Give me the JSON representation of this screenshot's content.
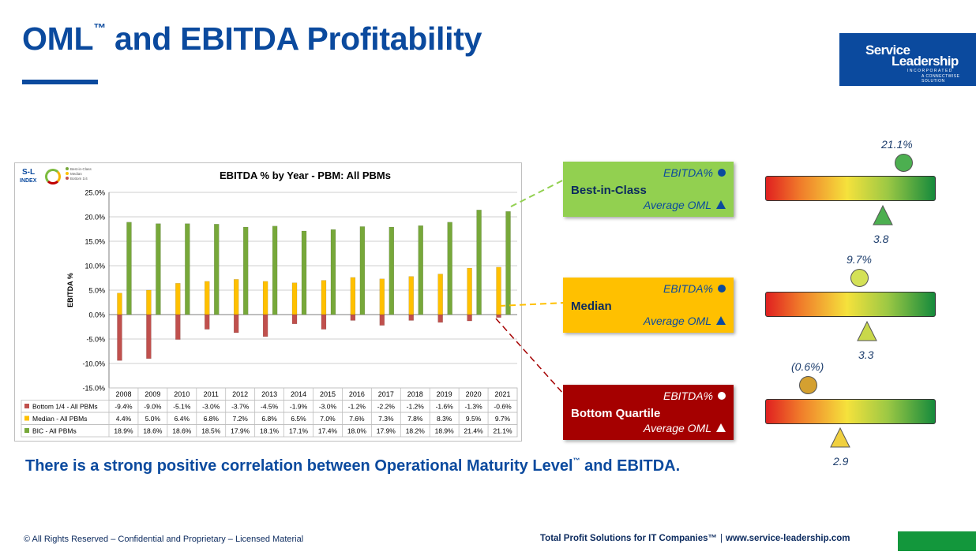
{
  "page": {
    "title": "OML",
    "title_tm": "™",
    "title_rest": " and EBITDA Profitability",
    "logo": {
      "line1": "Service",
      "line2": "Leadership",
      "line3": "INCORPORATED",
      "line4": "A CONNECTWISE SOLUTION"
    },
    "tagline_pre": "There is a strong positive correlation between Operational Maturity Level",
    "tagline_tm": "™",
    "tagline_post": " and EBITDA.",
    "footer_left": "© All Rights Reserved – Confidential and Proprietary – Licensed Material",
    "footer_right_a": "Total Profit Solutions for IT Companies™",
    "footer_sep": "|",
    "footer_right_b": "www.service-leadership.com"
  },
  "colors": {
    "brand_blue": "#0b4a9e",
    "green": "#92d050",
    "gold": "#ffc000",
    "dark_red": "#a50000",
    "bar_red": "#c0504d",
    "bar_gold": "#ffc000",
    "bar_green": "#77a83a"
  },
  "sl_index": {
    "line1": "S-L",
    "line2": "INDEX",
    "legend": [
      "Best-in-Class",
      "Median",
      "Bottom 1/4"
    ]
  },
  "chart_data": {
    "type": "bar",
    "title": "EBITDA % by Year - PBM: All PBMs",
    "ylabel": "EBITDA %",
    "ylim": [
      -15,
      25
    ],
    "yticks": [
      "25.0%",
      "20.0%",
      "15.0%",
      "10.0%",
      "5.0%",
      "0.0%",
      "-5.0%",
      "-10.0%",
      "-15.0%"
    ],
    "ytick_values": [
      25,
      20,
      15,
      10,
      5,
      0,
      -5,
      -10,
      -15
    ],
    "grid": true,
    "categories": [
      "2008",
      "2009",
      "2010",
      "2011",
      "2012",
      "2013",
      "2014",
      "2015",
      "2016",
      "2017",
      "2018",
      "2019",
      "2020",
      "2021"
    ],
    "series": [
      {
        "name": "Bottom 1/4 - All PBMs",
        "color": "#c0504d",
        "values": [
          -9.4,
          -9.0,
          -5.1,
          -3.0,
          -3.7,
          -4.5,
          -1.9,
          -3.0,
          -1.2,
          -2.2,
          -1.2,
          -1.6,
          -1.3,
          -0.6
        ],
        "labels": [
          "-9.4%",
          "-9.0%",
          "-5.1%",
          "-3.0%",
          "-3.7%",
          "-4.5%",
          "-1.9%",
          "-3.0%",
          "-1.2%",
          "-2.2%",
          "-1.2%",
          "-1.6%",
          "-1.3%",
          "-0.6%"
        ]
      },
      {
        "name": "Median - All PBMs",
        "color": "#ffc000",
        "values": [
          4.4,
          5.0,
          6.4,
          6.8,
          7.2,
          6.8,
          6.5,
          7.0,
          7.6,
          7.3,
          7.8,
          8.3,
          9.5,
          9.7
        ],
        "labels": [
          "4.4%",
          "5.0%",
          "6.4%",
          "6.8%",
          "7.2%",
          "6.8%",
          "6.5%",
          "7.0%",
          "7.6%",
          "7.3%",
          "7.8%",
          "8.3%",
          "9.5%",
          "9.7%"
        ]
      },
      {
        "name": "BIC - All PBMs",
        "color": "#77a83a",
        "values": [
          18.9,
          18.6,
          18.6,
          18.5,
          17.9,
          18.1,
          17.1,
          17.4,
          18.0,
          17.9,
          18.2,
          18.9,
          21.4,
          21.1
        ],
        "labels": [
          "18.9%",
          "18.6%",
          "18.6%",
          "18.5%",
          "17.9%",
          "18.1%",
          "17.1%",
          "17.4%",
          "18.0%",
          "17.9%",
          "18.2%",
          "18.9%",
          "21.4%",
          "21.1%"
        ]
      }
    ]
  },
  "callouts": [
    {
      "label": "Best-in-Class",
      "ebitda_label": "EBITDA%",
      "oml_label": "Average OML",
      "bg": "#92d050",
      "text_color": "#0b4a9e",
      "bold_color": "#0b2a5e"
    },
    {
      "label": "Median",
      "ebitda_label": "EBITDA%",
      "oml_label": "Average OML",
      "bg": "#ffc000",
      "text_color": "#0b4a9e",
      "bold_color": "#0b2a5e"
    },
    {
      "label": "Bottom Quartile",
      "ebitda_label": "EBITDA%",
      "oml_label": "Average OML",
      "bg": "#a50000",
      "text_color": "#ffffff",
      "bold_color": "#ffffff"
    }
  ],
  "gauges": [
    {
      "ebitda": "21.1%",
      "oml": "3.8",
      "ebitda_value": 21.1,
      "oml_value": 3.8,
      "circle_color": "#4caf50",
      "triangle_color": "#4caf50"
    },
    {
      "ebitda": "9.7%",
      "oml": "3.3",
      "ebitda_value": 9.7,
      "oml_value": 3.3,
      "circle_color": "#d4e157",
      "triangle_color": "#c9d84a"
    },
    {
      "ebitda": "(0.6%)",
      "oml": "2.9",
      "ebitda_value": -0.6,
      "oml_value": 2.9,
      "circle_color": "#d4a030",
      "triangle_color": "#f0d040"
    }
  ]
}
